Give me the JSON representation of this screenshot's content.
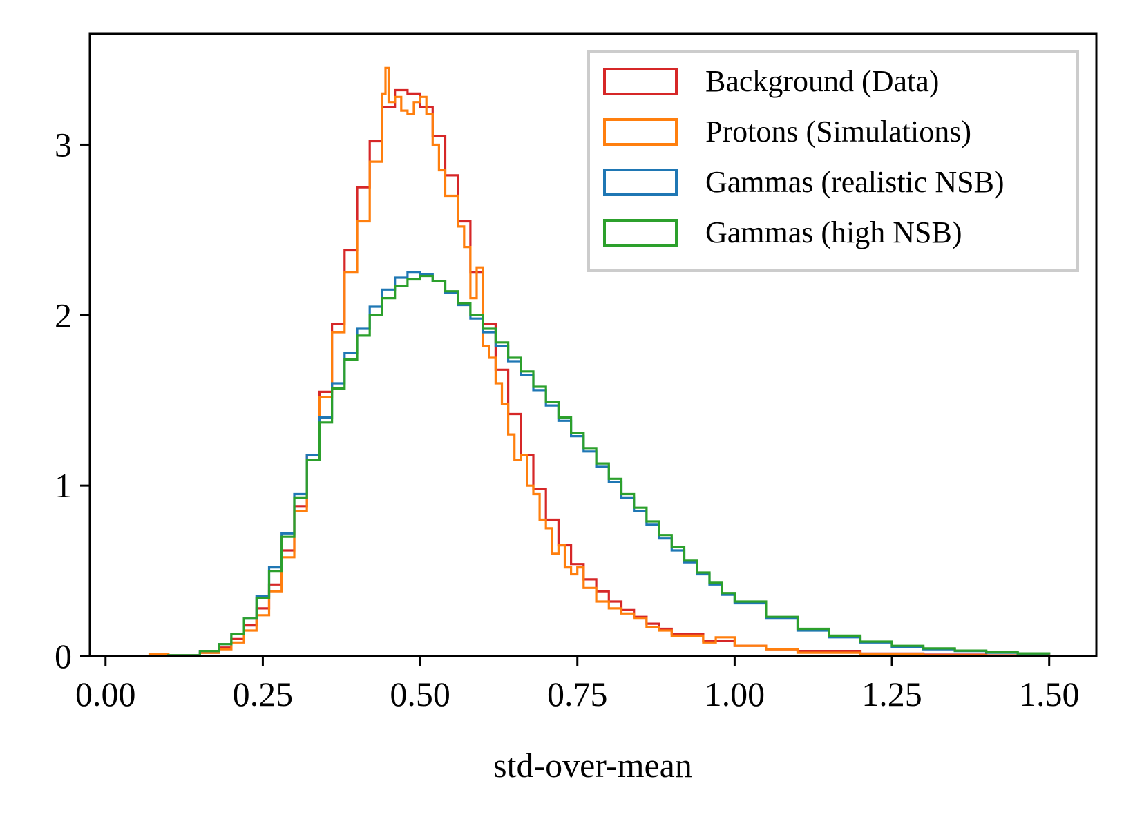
{
  "chart_data": {
    "type": "step-histogram",
    "title": "",
    "xlabel": "std-over-mean",
    "ylabel": "",
    "xlim": [
      -0.025,
      1.575
    ],
    "ylim": [
      0,
      3.65
    ],
    "x_ticks": [
      0.0,
      0.25,
      0.5,
      0.75,
      1.0,
      1.25,
      1.5
    ],
    "x_tick_labels": [
      "0.00",
      "0.25",
      "0.50",
      "0.75",
      "1.00",
      "1.25",
      "1.50"
    ],
    "y_ticks": [
      0,
      1,
      2,
      3
    ],
    "y_tick_labels": [
      "0",
      "1",
      "2",
      "3"
    ],
    "legend_position": "top-right",
    "series": [
      {
        "name": "Background (Data)",
        "color": "#d62728",
        "points": [
          [
            0.05,
            0.0
          ],
          [
            0.1,
            0.005
          ],
          [
            0.15,
            0.02
          ],
          [
            0.18,
            0.05
          ],
          [
            0.2,
            0.1
          ],
          [
            0.22,
            0.18
          ],
          [
            0.24,
            0.28
          ],
          [
            0.26,
            0.42
          ],
          [
            0.28,
            0.62
          ],
          [
            0.3,
            0.88
          ],
          [
            0.32,
            1.18
          ],
          [
            0.34,
            1.55
          ],
          [
            0.36,
            1.95
          ],
          [
            0.38,
            2.38
          ],
          [
            0.4,
            2.75
          ],
          [
            0.42,
            3.02
          ],
          [
            0.44,
            3.22
          ],
          [
            0.46,
            3.32
          ],
          [
            0.48,
            3.3
          ],
          [
            0.5,
            3.22
          ],
          [
            0.52,
            3.05
          ],
          [
            0.54,
            2.82
          ],
          [
            0.56,
            2.55
          ],
          [
            0.58,
            2.25
          ],
          [
            0.6,
            1.95
          ],
          [
            0.62,
            1.68
          ],
          [
            0.64,
            1.42
          ],
          [
            0.66,
            1.18
          ],
          [
            0.68,
            0.98
          ],
          [
            0.7,
            0.8
          ],
          [
            0.72,
            0.65
          ],
          [
            0.74,
            0.54
          ],
          [
            0.76,
            0.45
          ],
          [
            0.78,
            0.38
          ],
          [
            0.8,
            0.32
          ],
          [
            0.82,
            0.27
          ],
          [
            0.84,
            0.23
          ],
          [
            0.86,
            0.19
          ],
          [
            0.88,
            0.16
          ],
          [
            0.9,
            0.13
          ],
          [
            0.95,
            0.09
          ],
          [
            1.0,
            0.06
          ],
          [
            1.05,
            0.04
          ],
          [
            1.1,
            0.03
          ],
          [
            1.2,
            0.015
          ],
          [
            1.3,
            0.008
          ],
          [
            1.4,
            0.004
          ],
          [
            1.5,
            0.002
          ]
        ]
      },
      {
        "name": "Protons (Simulations)",
        "color": "#ff7f0e",
        "points": [
          [
            0.05,
            0.0
          ],
          [
            0.07,
            0.01
          ],
          [
            0.1,
            0.005
          ],
          [
            0.15,
            0.02
          ],
          [
            0.18,
            0.04
          ],
          [
            0.2,
            0.08
          ],
          [
            0.22,
            0.15
          ],
          [
            0.24,
            0.24
          ],
          [
            0.26,
            0.38
          ],
          [
            0.28,
            0.58
          ],
          [
            0.3,
            0.85
          ],
          [
            0.32,
            1.15
          ],
          [
            0.34,
            1.52
          ],
          [
            0.36,
            1.9
          ],
          [
            0.38,
            2.25
          ],
          [
            0.4,
            2.55
          ],
          [
            0.42,
            2.9
          ],
          [
            0.44,
            3.3
          ],
          [
            0.445,
            3.45
          ],
          [
            0.45,
            3.25
          ],
          [
            0.46,
            3.28
          ],
          [
            0.47,
            3.2
          ],
          [
            0.48,
            3.18
          ],
          [
            0.49,
            3.25
          ],
          [
            0.5,
            3.28
          ],
          [
            0.51,
            3.18
          ],
          [
            0.52,
            3.0
          ],
          [
            0.53,
            2.85
          ],
          [
            0.54,
            2.7
          ],
          [
            0.56,
            2.52
          ],
          [
            0.57,
            2.4
          ],
          [
            0.58,
            2.1
          ],
          [
            0.59,
            2.28
          ],
          [
            0.6,
            1.82
          ],
          [
            0.61,
            1.75
          ],
          [
            0.62,
            1.6
          ],
          [
            0.63,
            1.48
          ],
          [
            0.64,
            1.3
          ],
          [
            0.65,
            1.15
          ],
          [
            0.66,
            1.18
          ],
          [
            0.67,
            1.0
          ],
          [
            0.68,
            0.95
          ],
          [
            0.69,
            0.8
          ],
          [
            0.7,
            0.75
          ],
          [
            0.71,
            0.6
          ],
          [
            0.72,
            0.65
          ],
          [
            0.73,
            0.52
          ],
          [
            0.74,
            0.48
          ],
          [
            0.75,
            0.52
          ],
          [
            0.76,
            0.4
          ],
          [
            0.78,
            0.32
          ],
          [
            0.8,
            0.28
          ],
          [
            0.82,
            0.25
          ],
          [
            0.84,
            0.22
          ],
          [
            0.86,
            0.17
          ],
          [
            0.88,
            0.15
          ],
          [
            0.9,
            0.12
          ],
          [
            0.95,
            0.08
          ],
          [
            0.97,
            0.11
          ],
          [
            1.0,
            0.06
          ],
          [
            1.05,
            0.04
          ],
          [
            1.1,
            0.02
          ],
          [
            1.2,
            0.01
          ],
          [
            1.3,
            0.005
          ],
          [
            1.4,
            0.003
          ],
          [
            1.5,
            0.002
          ]
        ]
      },
      {
        "name": "Gammas (realistic NSB)",
        "color": "#1f77b4",
        "points": [
          [
            0.05,
            0.0
          ],
          [
            0.1,
            0.005
          ],
          [
            0.15,
            0.03
          ],
          [
            0.18,
            0.07
          ],
          [
            0.2,
            0.13
          ],
          [
            0.22,
            0.22
          ],
          [
            0.24,
            0.35
          ],
          [
            0.26,
            0.52
          ],
          [
            0.28,
            0.72
          ],
          [
            0.3,
            0.95
          ],
          [
            0.32,
            1.18
          ],
          [
            0.34,
            1.4
          ],
          [
            0.36,
            1.6
          ],
          [
            0.38,
            1.78
          ],
          [
            0.4,
            1.92
          ],
          [
            0.42,
            2.05
          ],
          [
            0.44,
            2.15
          ],
          [
            0.46,
            2.22
          ],
          [
            0.48,
            2.25
          ],
          [
            0.5,
            2.24
          ],
          [
            0.52,
            2.2
          ],
          [
            0.54,
            2.13
          ],
          [
            0.56,
            2.06
          ],
          [
            0.58,
            1.98
          ],
          [
            0.6,
            1.9
          ],
          [
            0.62,
            1.82
          ],
          [
            0.64,
            1.73
          ],
          [
            0.66,
            1.65
          ],
          [
            0.68,
            1.56
          ],
          [
            0.7,
            1.47
          ],
          [
            0.72,
            1.38
          ],
          [
            0.74,
            1.29
          ],
          [
            0.76,
            1.2
          ],
          [
            0.78,
            1.11
          ],
          [
            0.8,
            1.02
          ],
          [
            0.82,
            0.93
          ],
          [
            0.84,
            0.85
          ],
          [
            0.86,
            0.77
          ],
          [
            0.88,
            0.69
          ],
          [
            0.9,
            0.62
          ],
          [
            0.92,
            0.55
          ],
          [
            0.94,
            0.48
          ],
          [
            0.96,
            0.42
          ],
          [
            0.98,
            0.36
          ],
          [
            1.0,
            0.31
          ],
          [
            1.05,
            0.22
          ],
          [
            1.1,
            0.15
          ],
          [
            1.15,
            0.11
          ],
          [
            1.2,
            0.08
          ],
          [
            1.25,
            0.055
          ],
          [
            1.3,
            0.04
          ],
          [
            1.35,
            0.03
          ],
          [
            1.4,
            0.02
          ],
          [
            1.45,
            0.015
          ],
          [
            1.5,
            0.01
          ]
        ]
      },
      {
        "name": "Gammas (high NSB)",
        "color": "#2ca02c",
        "points": [
          [
            0.05,
            0.0
          ],
          [
            0.1,
            0.005
          ],
          [
            0.15,
            0.03
          ],
          [
            0.18,
            0.07
          ],
          [
            0.2,
            0.13
          ],
          [
            0.22,
            0.22
          ],
          [
            0.24,
            0.34
          ],
          [
            0.26,
            0.5
          ],
          [
            0.28,
            0.7
          ],
          [
            0.3,
            0.93
          ],
          [
            0.32,
            1.15
          ],
          [
            0.34,
            1.37
          ],
          [
            0.36,
            1.57
          ],
          [
            0.38,
            1.74
          ],
          [
            0.4,
            1.88
          ],
          [
            0.42,
            2.0
          ],
          [
            0.44,
            2.1
          ],
          [
            0.46,
            2.17
          ],
          [
            0.48,
            2.21
          ],
          [
            0.5,
            2.23
          ],
          [
            0.52,
            2.2
          ],
          [
            0.54,
            2.14
          ],
          [
            0.56,
            2.07
          ],
          [
            0.58,
            2.0
          ],
          [
            0.6,
            1.92
          ],
          [
            0.62,
            1.84
          ],
          [
            0.64,
            1.75
          ],
          [
            0.66,
            1.67
          ],
          [
            0.68,
            1.58
          ],
          [
            0.7,
            1.49
          ],
          [
            0.72,
            1.4
          ],
          [
            0.74,
            1.31
          ],
          [
            0.76,
            1.22
          ],
          [
            0.78,
            1.13
          ],
          [
            0.8,
            1.04
          ],
          [
            0.82,
            0.95
          ],
          [
            0.84,
            0.87
          ],
          [
            0.86,
            0.79
          ],
          [
            0.88,
            0.71
          ],
          [
            0.9,
            0.64
          ],
          [
            0.92,
            0.56
          ],
          [
            0.94,
            0.49
          ],
          [
            0.96,
            0.43
          ],
          [
            0.98,
            0.37
          ],
          [
            1.0,
            0.32
          ],
          [
            1.05,
            0.23
          ],
          [
            1.1,
            0.16
          ],
          [
            1.15,
            0.12
          ],
          [
            1.2,
            0.085
          ],
          [
            1.25,
            0.06
          ],
          [
            1.3,
            0.045
          ],
          [
            1.35,
            0.032
          ],
          [
            1.4,
            0.022
          ],
          [
            1.45,
            0.016
          ],
          [
            1.5,
            0.011
          ]
        ]
      }
    ]
  }
}
